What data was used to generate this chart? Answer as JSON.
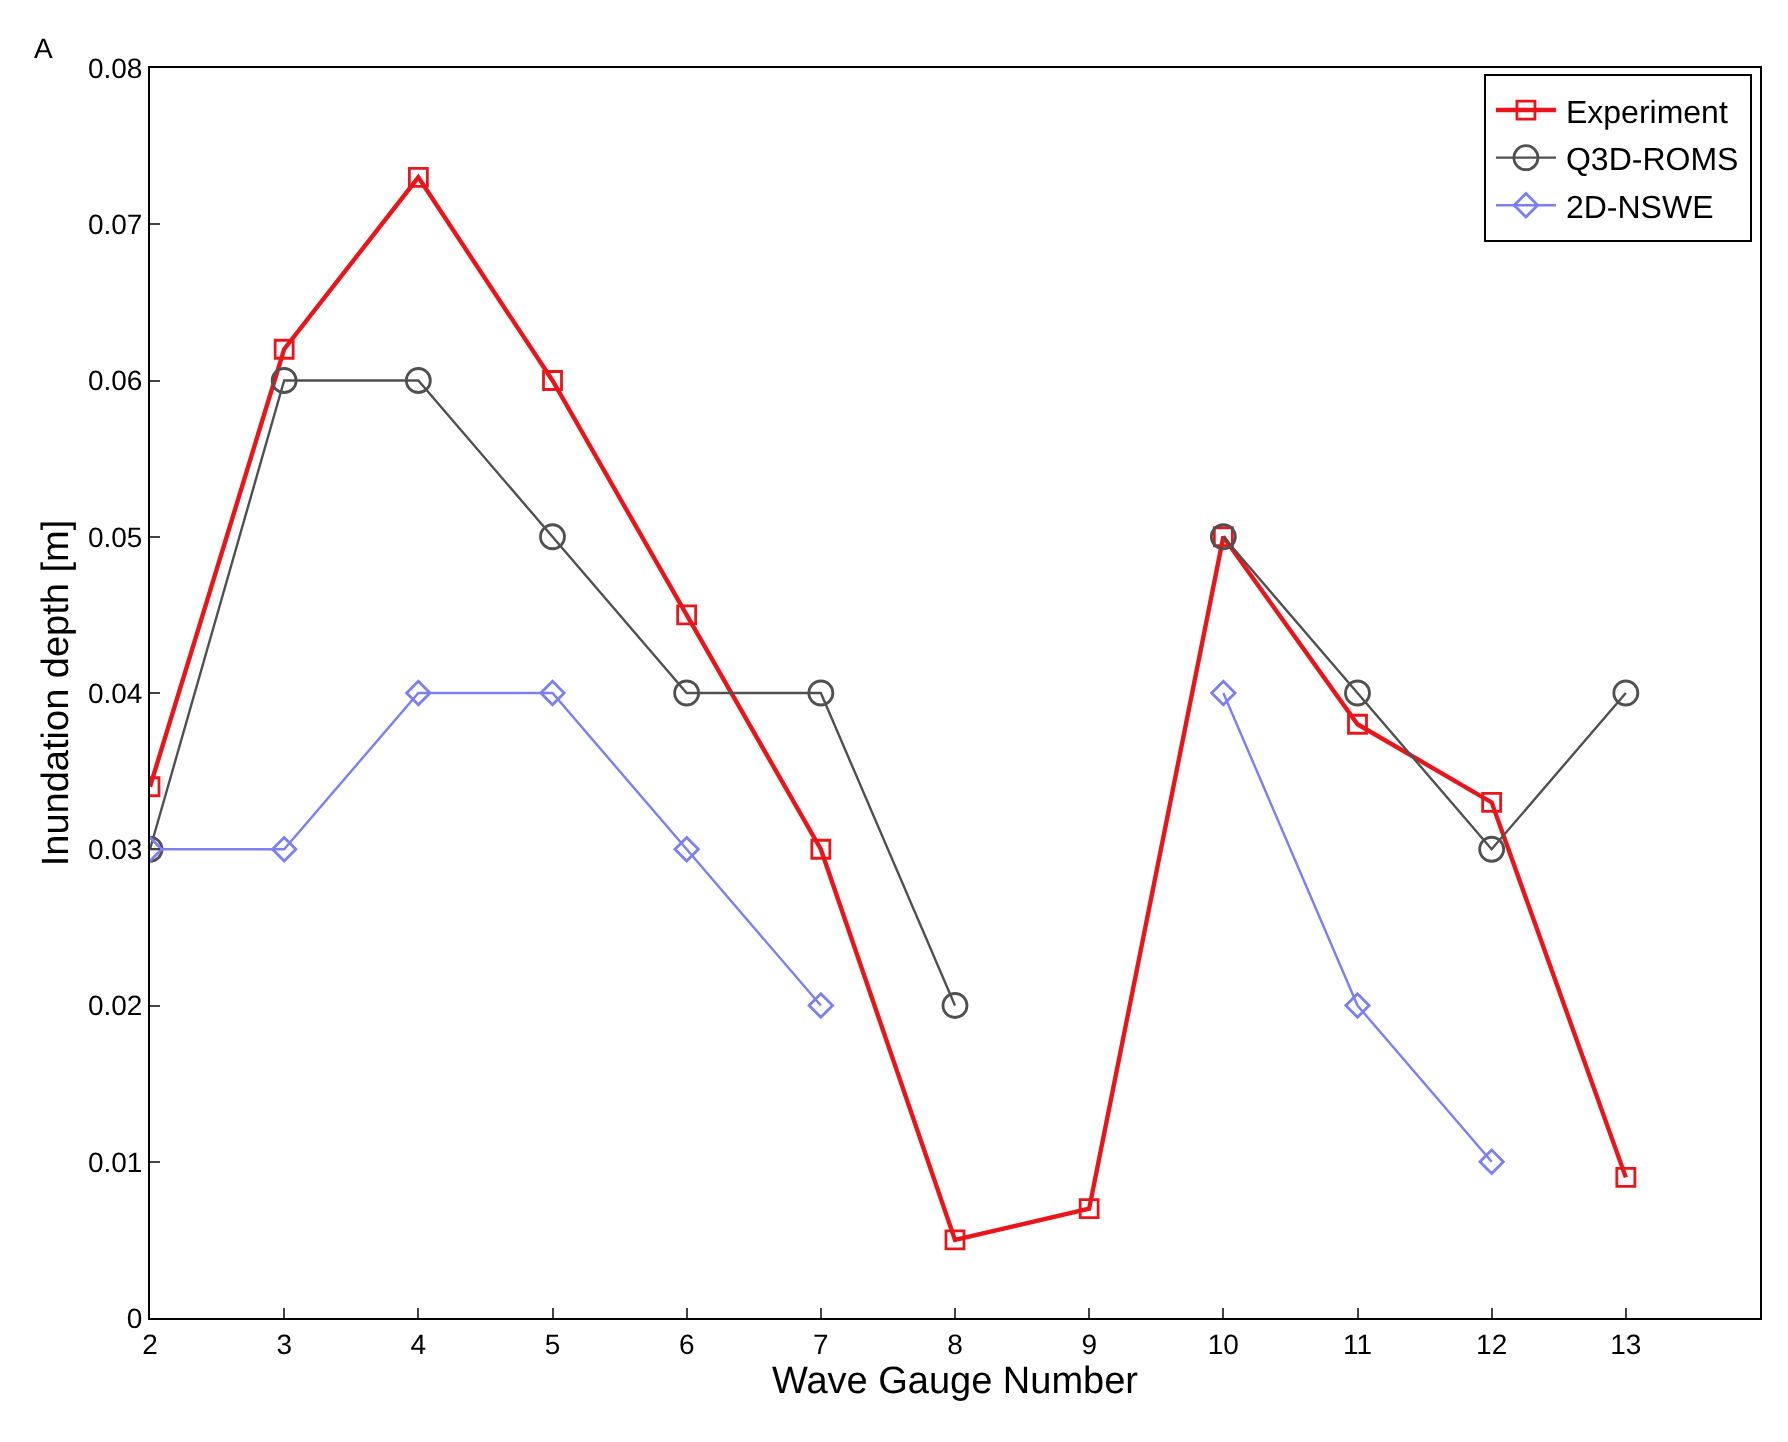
{
  "chart_data": {
    "type": "line",
    "xlabel": "Wave Gauge Number",
    "ylabel": "Inundation depth [m]",
    "annotations": [
      "A"
    ],
    "x": [
      2,
      3,
      4,
      5,
      6,
      7,
      8,
      9,
      10,
      11,
      12,
      13
    ],
    "series": [
      {
        "name": "Experiment",
        "color": "#e8161b",
        "marker": "square",
        "values": [
          0.034,
          0.062,
          0.073,
          0.06,
          0.045,
          0.03,
          0.005,
          0.007,
          0.05,
          0.038,
          0.033,
          0.009
        ]
      },
      {
        "name": "Q3D-ROMS",
        "color": "#505050",
        "marker": "circle",
        "values": [
          0.03,
          0.06,
          0.06,
          0.05,
          0.04,
          0.04,
          0.02,
          null,
          0.05,
          0.04,
          0.03,
          0.04
        ]
      },
      {
        "name": "2D-NSWE",
        "color": "#7b7ff0",
        "marker": "diamond",
        "values": [
          0.03,
          0.03,
          0.04,
          0.04,
          0.03,
          0.02,
          null,
          null,
          0.04,
          0.02,
          0.01,
          null
        ]
      }
    ],
    "xlim": [
      2,
      14
    ],
    "xticks": [
      2,
      3,
      4,
      5,
      6,
      7,
      8,
      9,
      10,
      11,
      12,
      13
    ],
    "ylim": [
      0,
      0.08
    ],
    "yticks": [
      0,
      0.01,
      0.02,
      0.03,
      0.04,
      0.05,
      0.06,
      0.07,
      0.08
    ],
    "legend": "top right",
    "line_style": "solid"
  }
}
